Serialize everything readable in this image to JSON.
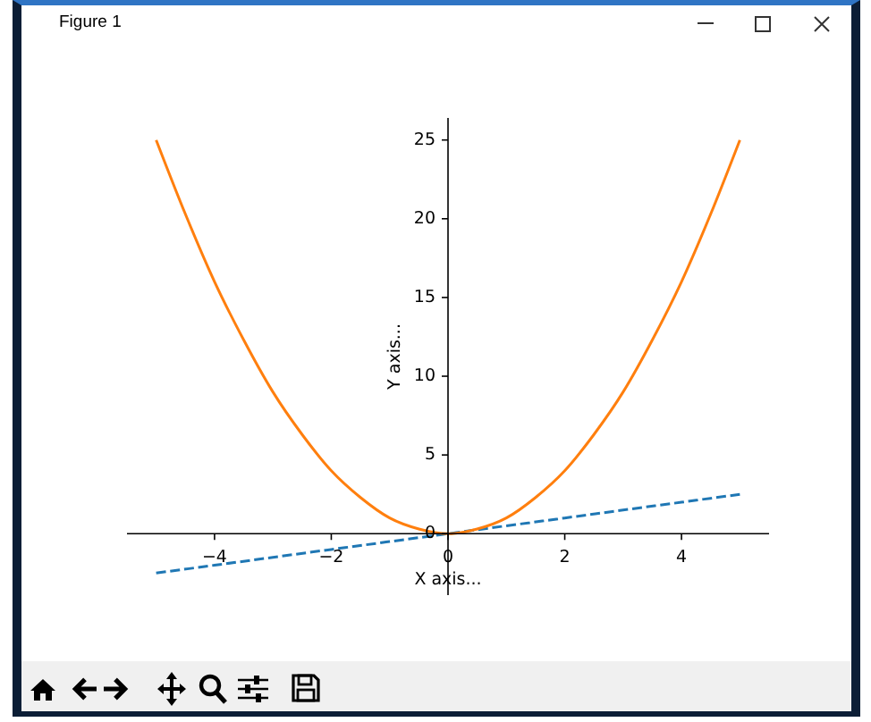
{
  "chart_data": {
    "type": "line",
    "annotations": [
      "Figure 1"
    ],
    "xlabel": "X axis...",
    "ylabel": "Y axis...",
    "series": [
      {
        "color": "#1f77b4",
        "line_style": "dashed",
        "x": [
          -5,
          -4,
          -3,
          -2,
          -1,
          0,
          1,
          2,
          3,
          4,
          5
        ],
        "values": [
          -2.5,
          -2,
          -1.5,
          -1,
          -0.5,
          0,
          0.5,
          1,
          1.5,
          2,
          2.5
        ]
      },
      {
        "color": "#ff7f0e",
        "line_style": "solid",
        "x": [
          -5,
          -4.5,
          -4,
          -3.5,
          -3,
          -2.5,
          -2,
          -1.5,
          -1,
          -0.5,
          0,
          0.5,
          1,
          1.5,
          2,
          2.5,
          3,
          3.5,
          4,
          4.5,
          5
        ],
        "values": [
          25,
          20.3,
          16,
          12.3,
          9,
          6.3,
          4,
          2.3,
          1,
          0.3,
          0,
          0.3,
          1,
          2.3,
          4,
          6.3,
          9,
          12.3,
          16,
          20.3,
          25
        ]
      }
    ],
    "xlim": [
      -5.5,
      5.5
    ],
    "ylim": [
      -3.9,
      26.4
    ],
    "xticks": [
      -4,
      -2,
      0,
      2,
      4
    ],
    "yticks": [
      0,
      5,
      10,
      15,
      20,
      25
    ],
    "marker": "none"
  }
}
